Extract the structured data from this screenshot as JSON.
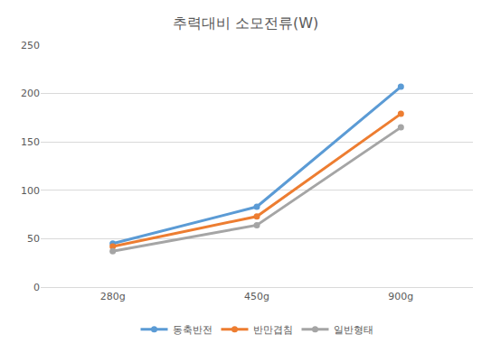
{
  "chart_data": {
    "type": "line",
    "title": "추력대비 소모전류(W)",
    "categories": [
      "280g",
      "450g",
      "900g"
    ],
    "series": [
      {
        "name": "동축반전",
        "color": "#5b9bd5",
        "values": [
          45,
          83,
          207
        ]
      },
      {
        "name": "반만겹침",
        "color": "#ed7d31",
        "values": [
          42,
          73,
          179
        ]
      },
      {
        "name": "일반형태",
        "color": "#a5a5a5",
        "values": [
          37,
          64,
          165
        ]
      }
    ],
    "ylim": [
      0,
      250
    ],
    "yticks": [
      0,
      50,
      100,
      150,
      200,
      250
    ],
    "grid": true,
    "legend": "bottom",
    "marker": "circle"
  }
}
